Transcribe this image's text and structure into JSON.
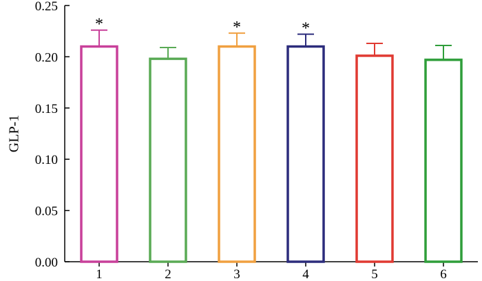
{
  "chart_data": {
    "type": "bar",
    "title": "",
    "xlabel": "",
    "ylabel": "GLP-1",
    "ylim": [
      0,
      0.25
    ],
    "yticks": [
      "0.00",
      "0.05",
      "0.10",
      "0.15",
      "0.20",
      "0.25"
    ],
    "categories": [
      "1",
      "2",
      "3",
      "4",
      "5",
      "6"
    ],
    "values": [
      0.21,
      0.198,
      0.21,
      0.21,
      0.201,
      0.197
    ],
    "errors": [
      0.016,
      0.011,
      0.013,
      0.012,
      0.012,
      0.014
    ],
    "significance": [
      "*",
      "",
      "*",
      "*",
      "",
      ""
    ],
    "colors": [
      "#c8409a",
      "#5aaa55",
      "#f0a040",
      "#2c2c7c",
      "#e03a32",
      "#2f9e3a"
    ],
    "grid": false,
    "legend": "none"
  }
}
